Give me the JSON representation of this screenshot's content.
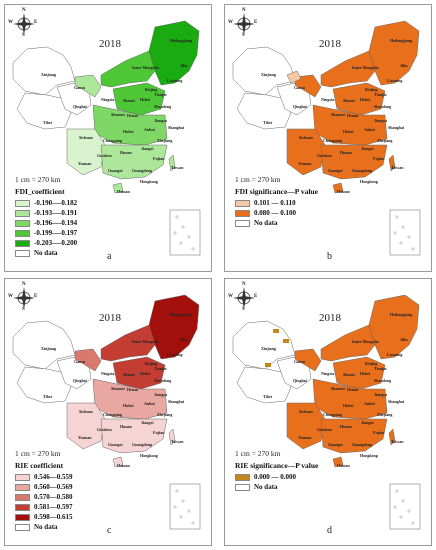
{
  "compass": {
    "n": "N",
    "s": "S",
    "e": "E",
    "w": "W"
  },
  "panels": [
    {
      "id": "a",
      "year": "2018",
      "scale": "1 cm = 270 km",
      "letter": "a",
      "legend_title": "FDI_coefficient",
      "legend": [
        {
          "label": "-0.190—-0.182",
          "color": "#d9f3cf"
        },
        {
          "label": "-0.193—-0.191",
          "color": "#ade89a"
        },
        {
          "label": "-0.196—-0.194",
          "color": "#7fd866"
        },
        {
          "label": "-0.199—-0.197",
          "color": "#4ec737"
        },
        {
          "label": "-0.203—-0.200",
          "color": "#1aab10"
        },
        {
          "label": "No data",
          "color": "#ffffff"
        }
      ]
    },
    {
      "id": "b",
      "year": "2018",
      "scale": "1 cm = 270 km",
      "letter": "b",
      "legend_title": "FDI significance—P value",
      "legend": [
        {
          "label": "0.101 — 0.110",
          "color": "#f4c9a4"
        },
        {
          "label": "0.080 — 0.100",
          "color": "#e8701c"
        },
        {
          "label": "No data",
          "color": "#ffffff"
        }
      ]
    },
    {
      "id": "c",
      "year": "2018",
      "scale": "1 cm = 270 km",
      "letter": "c",
      "legend_title": "RIE coefficient",
      "legend": [
        {
          "label": "0.546—0.559",
          "color": "#f7d4d4"
        },
        {
          "label": "0.560—0.569",
          "color": "#e8a7a0"
        },
        {
          "label": "0.570—0.580",
          "color": "#d9786d"
        },
        {
          "label": "0.581—0.597",
          "color": "#c43d33"
        },
        {
          "label": "0.598—0.615",
          "color": "#a3100c"
        },
        {
          "label": "No data",
          "color": "#ffffff"
        }
      ]
    },
    {
      "id": "d",
      "year": "2018",
      "scale": "1 cm = 270 km",
      "letter": "d",
      "legend_title": "RIE significance—P value",
      "legend": [
        {
          "label": "0.000 — 0.000",
          "color": "#c5861e"
        },
        {
          "label": "No data",
          "color": "#ffffff"
        }
      ]
    }
  ],
  "regions": {
    "xinjiang": "Xinjiang",
    "tibet": "Tibet",
    "qinghai": "Qinghai",
    "gansu": "Gansu",
    "inner_mongolia": "Inner Mongolia",
    "heilongjiang": "Heilongjiang",
    "jilin": "Jilin",
    "liaoning": "Liaoning",
    "beijing": "Beijing",
    "hebei": "Hebei",
    "shanxi": "Shanxi",
    "shaanxi": "Shaanxi",
    "henan": "Henan",
    "shandong": "Shandong",
    "jiangsu": "Jiangsu",
    "anhui": "Anhui",
    "hubei": "Hubei",
    "sichuan": "Sichuan",
    "chongqing": "Chongqing",
    "hunan": "Hunan",
    "jiangxi": "Jiangxi",
    "zhejiang": "Zhejiang",
    "fujian": "Fujian",
    "guizhou": "Guizhou",
    "yunnan": "Yunnan",
    "guangxi": "Guangxi",
    "guangdong": "Guangdong",
    "taiwan": "Taiwan",
    "hainan": "Hainan",
    "ningxia": "Ningxia",
    "tianjin": "Tianjin",
    "shanghai": "Shanghai",
    "hongkong": "Hongkong"
  },
  "map_colors": {
    "a": {
      "west": "#ffffff",
      "north_east": "#1aab10",
      "north": "#4ec737",
      "central": "#7fd866",
      "south": "#ade89a",
      "southwest": "#d9f3cf",
      "gansu": "#ade89a"
    },
    "b": {
      "west": "#ffffff",
      "north_east": "#e8701c",
      "north": "#e8701c",
      "central": "#e8701c",
      "south": "#e8701c",
      "southwest": "#e8701c",
      "gansu": "#e8701c",
      "qh_top": "#f4c9a4"
    },
    "c": {
      "west": "#ffffff",
      "north_east": "#a3100c",
      "north": "#c43d33",
      "central": "#e8a7a0",
      "south": "#f7d4d4",
      "southwest": "#f7d4d4",
      "gansu": "#d9786d"
    },
    "d": {
      "west": "#ffffff",
      "north_east": "#e8701c",
      "north": "#e8701c",
      "central": "#e8701c",
      "south": "#e8701c",
      "southwest": "#e8701c",
      "gansu": "#e8701c",
      "spots": "#c5861e"
    }
  }
}
